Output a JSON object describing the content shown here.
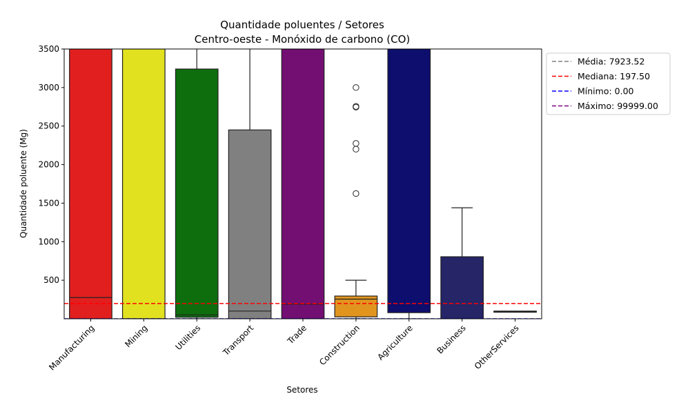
{
  "chart_data": {
    "type": "box",
    "title": "Quantidade poluentes / Setores",
    "subtitle": "Centro-oeste - Monóxido de carbono (CO)",
    "xlabel": "Setores",
    "ylabel": "Quantidade poluente (Mg)",
    "ylim": [
      0,
      3500
    ],
    "yticks": [
      500,
      1000,
      1500,
      2000,
      2500,
      3000,
      3500
    ],
    "categories": [
      "Manufacturing",
      "Mining",
      "Utilities",
      "Transport",
      "Trade",
      "Construction",
      "Agriculture",
      "Business",
      "OtherServices"
    ],
    "boxes": [
      {
        "category": "Manufacturing",
        "color": "#e11f1f",
        "q1": 0,
        "median": 275,
        "q3": 3500,
        "whisker_low": 0,
        "whisker_high": 3500,
        "outliers": []
      },
      {
        "category": "Mining",
        "color": "#e1e11f",
        "q1": 0,
        "median": 0,
        "q3": 3500,
        "whisker_low": 0,
        "whisker_high": 3500,
        "outliers": []
      },
      {
        "category": "Utilities",
        "color": "#0e6e0e",
        "q1": 20,
        "median": 50,
        "q3": 3240,
        "whisker_low": 0,
        "whisker_high": 3500,
        "outliers": []
      },
      {
        "category": "Transport",
        "color": "#808080",
        "q1": 0,
        "median": 100,
        "q3": 2450,
        "whisker_low": 0,
        "whisker_high": 3500,
        "outliers": []
      },
      {
        "category": "Trade",
        "color": "#730f73",
        "q1": 0,
        "median": 190,
        "q3": 3500,
        "whisker_low": 0,
        "whisker_high": 3500,
        "outliers": []
      },
      {
        "category": "Construction",
        "color": "#e1951f",
        "q1": 25,
        "median": 255,
        "q3": 295,
        "whisker_low": 0,
        "whisker_high": 500,
        "outliers": [
          1625,
          2200,
          2275,
          2745,
          2755,
          3000
        ]
      },
      {
        "category": "Agriculture",
        "color": "#0e0e6e",
        "q1": 80,
        "median": 80,
        "q3": 3500,
        "whisker_low": 0,
        "whisker_high": 3500,
        "outliers": []
      },
      {
        "category": "Business",
        "color": "#252568",
        "q1": 0,
        "median": 0,
        "q3": 805,
        "whisker_low": 0,
        "whisker_high": 1440,
        "outliers": []
      },
      {
        "category": "OtherServices",
        "color": "#252568",
        "q1": 85,
        "median": 95,
        "q3": 100,
        "whisker_low": 85,
        "whisker_high": 100,
        "outliers": []
      }
    ],
    "reference_lines": [
      {
        "label": "Média: 7923.52",
        "value": 7923.52,
        "color": "#808080",
        "visible_in_range": false
      },
      {
        "label": "Mediana: 197.50",
        "value": 197.5,
        "color": "#ff0000",
        "visible_in_range": true
      },
      {
        "label": "Mínimo: 0.00",
        "value": 0,
        "color": "#0000ff",
        "visible_in_range": true
      },
      {
        "label": "Máximo: 99999.00",
        "value": 99999,
        "color": "#800080",
        "visible_in_range": false
      }
    ],
    "legend_position": "outside-right-top",
    "grid": false
  }
}
